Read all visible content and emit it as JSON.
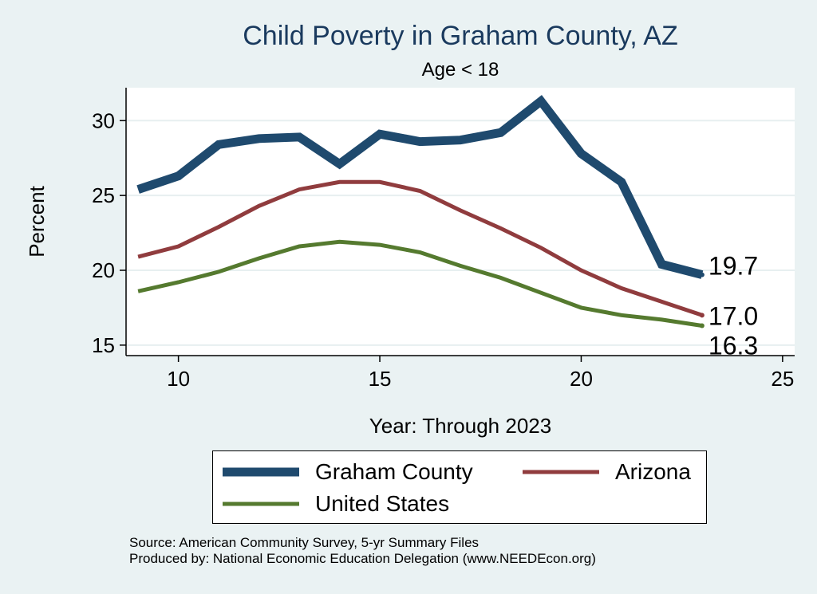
{
  "chart_data": {
    "type": "line",
    "title": "Child Poverty in Graham County, AZ",
    "subtitle": "Age < 18",
    "xlabel": "Year: Through 2023",
    "ylabel": "Percent",
    "xlim": [
      8.7,
      25.3
    ],
    "ylim": [
      14.3,
      32.2
    ],
    "xticks": [
      10,
      15,
      20,
      25
    ],
    "yticks": [
      15,
      20,
      25,
      30
    ],
    "x": [
      9,
      10,
      11,
      12,
      13,
      14,
      15,
      16,
      17,
      18,
      19,
      20,
      21,
      22,
      23
    ],
    "series": [
      {
        "name": "Graham County",
        "color": "#1f4a6e",
        "values": [
          25.4,
          26.3,
          28.4,
          28.8,
          28.9,
          27.1,
          29.1,
          28.6,
          28.7,
          29.2,
          31.3,
          27.8,
          25.9,
          20.4,
          19.7
        ],
        "end_label": "19.7"
      },
      {
        "name": "Arizona",
        "color": "#903c3e",
        "values": [
          20.9,
          21.6,
          22.9,
          24.3,
          25.4,
          25.9,
          25.9,
          25.3,
          24.0,
          22.8,
          21.5,
          20.0,
          18.8,
          17.9,
          17.0
        ],
        "end_label": "17.0"
      },
      {
        "name": "United States",
        "color": "#557a2f",
        "values": [
          18.6,
          19.2,
          19.9,
          20.8,
          21.6,
          21.9,
          21.7,
          21.2,
          20.3,
          19.5,
          18.5,
          17.5,
          17.0,
          16.7,
          16.3
        ],
        "end_label": "16.3"
      }
    ],
    "grid": true,
    "legend_position": "bottom"
  },
  "notes": {
    "source": "Source: American Community Survey, 5-yr Summary Files",
    "produced": "Produced by: National Economic Education Delegation (www.NEEDEcon.org)"
  }
}
